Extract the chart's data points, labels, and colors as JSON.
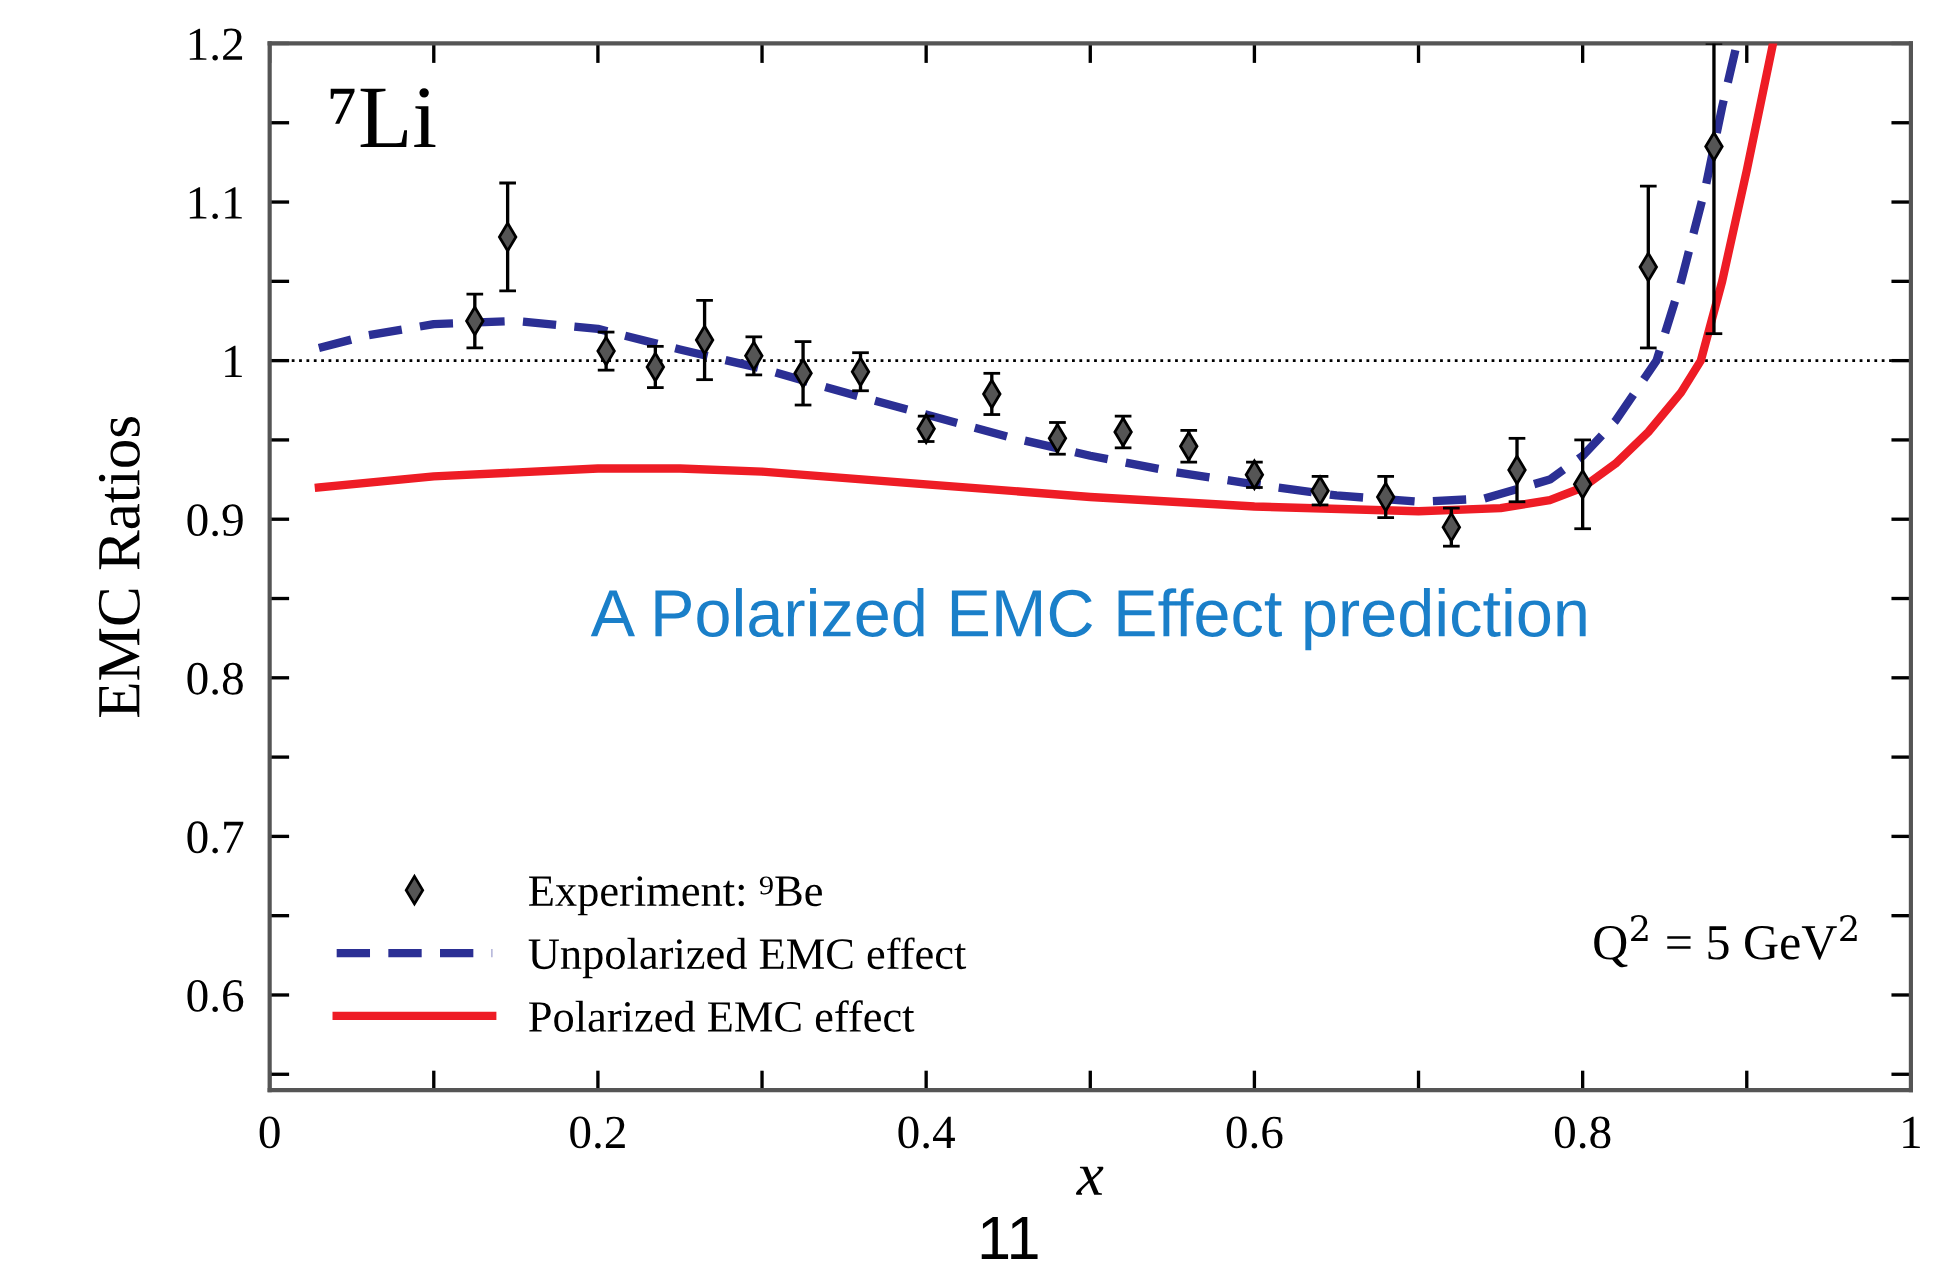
{
  "chart_data": {
    "type": "line",
    "xlabel": "x",
    "ylabel": "EMC Ratios",
    "xlim": [
      0,
      1
    ],
    "ylim": [
      0.54,
      1.2
    ],
    "xticks": [
      {
        "value": 0,
        "label": "0"
      },
      {
        "value": 0.1,
        "label": null
      },
      0.2,
      {
        "value": 0.3,
        "label": null
      },
      0.4,
      {
        "value": 0.5,
        "label": null
      },
      0.6,
      {
        "value": 0.7,
        "label": null
      },
      0.8,
      {
        "value": 0.9,
        "label": null
      },
      {
        "value": 1,
        "label": "1"
      }
    ],
    "yticks": [
      {
        "value": 0.55,
        "label": null
      },
      0.6,
      {
        "value": 0.65,
        "label": null
      },
      0.7,
      {
        "value": 0.75,
        "label": null
      },
      0.8,
      {
        "value": 0.85,
        "label": null
      },
      0.9,
      {
        "value": 0.95,
        "label": null
      },
      {
        "value": 1,
        "label": "1"
      },
      {
        "value": 1.05,
        "label": null
      },
      1.1,
      {
        "value": 1.15,
        "label": null
      },
      1.2
    ],
    "grid": false,
    "legend": "bottom left",
    "ref_lines": [
      {
        "axis": "y",
        "value": 1,
        "color": "#000000",
        "line_style": "dotted"
      }
    ],
    "series": [
      {
        "name": "Experiment: ⁹Be",
        "type": "scatter",
        "marker": "diamond",
        "color": "#555555",
        "x": [
          0.125,
          0.145,
          0.205,
          0.235,
          0.265,
          0.295,
          0.325,
          0.36,
          0.4,
          0.44,
          0.48,
          0.52,
          0.56,
          0.6,
          0.64,
          0.68,
          0.72,
          0.76,
          0.8,
          0.84,
          0.88
        ],
        "values": [
          1.025,
          1.078,
          1.006,
          0.996,
          1.013,
          1.003,
          0.992,
          0.993,
          0.957,
          0.979,
          0.951,
          0.955,
          0.946,
          0.928,
          0.918,
          0.914,
          0.895,
          0.931,
          0.922,
          1.059,
          1.135
        ],
        "errors": [
          0.017,
          0.034,
          0.012,
          0.013,
          0.025,
          0.012,
          0.02,
          0.012,
          0.008,
          0.013,
          0.01,
          0.01,
          0.01,
          0.008,
          0.009,
          0.013,
          0.012,
          0.02,
          0.028,
          0.051,
          [
            1.017,
            1.2
          ]
        ]
      },
      {
        "name": "Unpolarized EMC effect",
        "line_style": "dashed",
        "color": "#2b2f94",
        "x": [
          0.03,
          0.06,
          0.1,
          0.15,
          0.2,
          0.25,
          0.3,
          0.35,
          0.4,
          0.45,
          0.5,
          0.55,
          0.6,
          0.65,
          0.7,
          0.74,
          0.78,
          0.8,
          0.82,
          0.845,
          0.86,
          0.875,
          0.885,
          0.894
        ],
        "values": [
          1.008,
          1.016,
          1.023,
          1.025,
          1.02,
          1.007,
          0.995,
          0.98,
          0.966,
          0.952,
          0.94,
          0.93,
          0.922,
          0.915,
          0.911,
          0.913,
          0.925,
          0.94,
          0.962,
          1.0,
          1.05,
          1.11,
          1.16,
          1.2
        ]
      },
      {
        "name": "Polarized EMC effect",
        "line_style": "solid",
        "color": "#ee1c25",
        "x": [
          0.03,
          0.1,
          0.2,
          0.25,
          0.3,
          0.4,
          0.5,
          0.6,
          0.7,
          0.75,
          0.78,
          0.8,
          0.82,
          0.84,
          0.86,
          0.872,
          0.885,
          0.9,
          0.916
        ],
        "values": [
          0.92,
          0.927,
          0.932,
          0.932,
          0.93,
          0.922,
          0.914,
          0.908,
          0.905,
          0.907,
          0.912,
          0.92,
          0.935,
          0.955,
          0.98,
          1.0,
          1.05,
          1.12,
          1.2
        ]
      }
    ],
    "annotations": [
      "⁷Li",
      "A Polarized EMC Effect prediction",
      "Q$^{2}$ = 5 GeV$^{2}$",
      "11"
    ]
  }
}
